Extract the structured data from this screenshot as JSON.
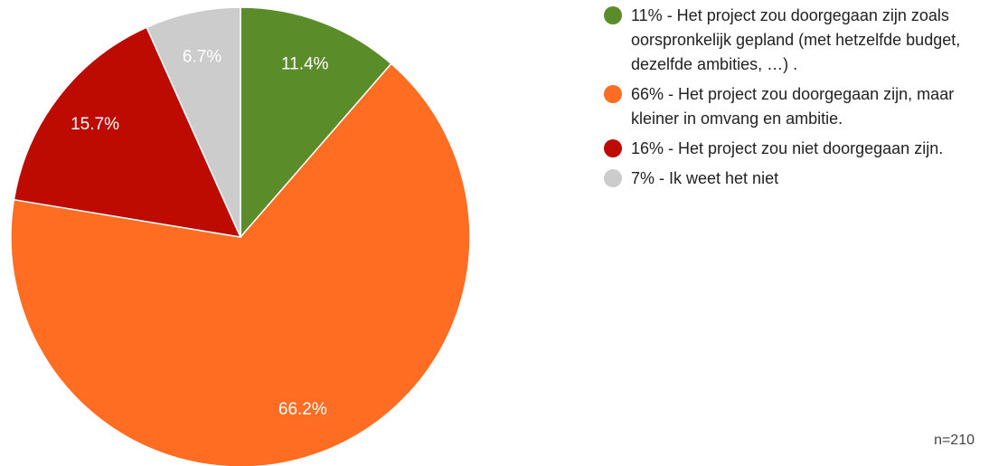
{
  "chart_data": {
    "type": "pie",
    "categories": [
      "11% - Het project zou doorgegaan zijn zoals oorspronkelijk gepland (met hetzelfde budget, dezelfde ambities, …) .",
      "66% - Het project zou doorgegaan zijn, maar kleiner in omvang en ambitie.",
      "16% - Het project zou niet doorgegaan zijn.",
      "7% - Ik weet het niet"
    ],
    "values": [
      11.4,
      66.2,
      15.7,
      6.7
    ],
    "value_labels": [
      "11.4%",
      "66.2%",
      "15.7%",
      "6.7%"
    ],
    "colors": [
      "#5b8c2a",
      "#ff6d22",
      "#bd0b02",
      "#cccccc"
    ],
    "legend": "right",
    "annotation": "n=210"
  }
}
